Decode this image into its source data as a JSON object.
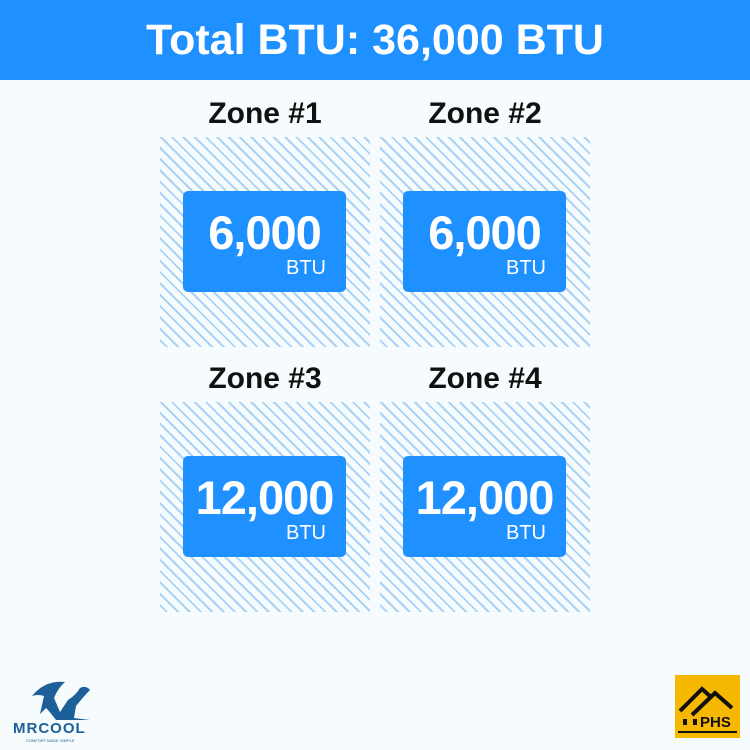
{
  "header": {
    "title": "Total BTU: 36,000 BTU"
  },
  "zones": [
    {
      "title": "Zone #1",
      "value": "6,000",
      "unit": "BTU"
    },
    {
      "title": "Zone #2",
      "value": "6,000",
      "unit": "BTU"
    },
    {
      "title": "Zone #3",
      "value": "12,000",
      "unit": "BTU"
    },
    {
      "title": "Zone #4",
      "value": "12,000",
      "unit": "BTU"
    }
  ],
  "logos": {
    "mrcool": "MRCOOL",
    "mrcool_tagline": "COMFORT MADE SIMPLE",
    "phs": "PHS"
  },
  "colors": {
    "accent": "#1e90ff",
    "hatch": "#a9d2f5",
    "phs_bg": "#f6b800"
  }
}
